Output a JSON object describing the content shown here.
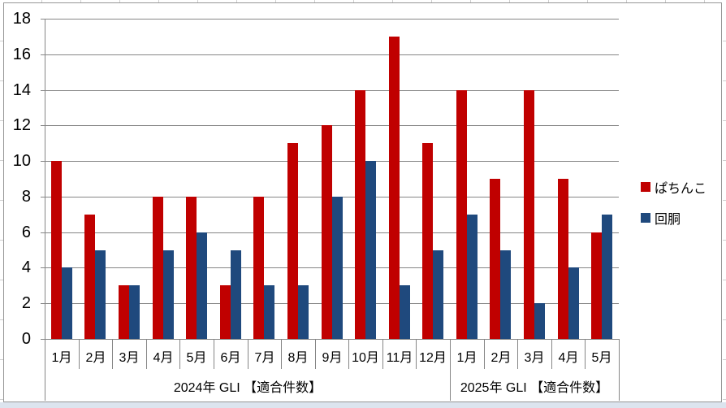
{
  "chart_data": {
    "type": "bar",
    "title": "",
    "xlabel": "",
    "ylabel": "",
    "categories": [
      "1月",
      "2月",
      "3月",
      "4月",
      "5月",
      "6月",
      "7月",
      "8月",
      "9月",
      "10月",
      "11月",
      "12月",
      "1月",
      "2月",
      "3月",
      "4月",
      "5月"
    ],
    "category_groups": [
      {
        "label": "2024年 GLI 【適合件数】",
        "count": 12
      },
      {
        "label": "2025年 GLI 【適合件数】",
        "count": 5
      }
    ],
    "series": [
      {
        "id": "pachinko",
        "name": "ぱちんこ",
        "color": "#c00000",
        "values": [
          10,
          7,
          3,
          8,
          8,
          3,
          8,
          11,
          12,
          14,
          17,
          11,
          14,
          9,
          14,
          9,
          6
        ]
      },
      {
        "id": "kaidou",
        "name": "回胴",
        "color": "#1f497d",
        "values": [
          4,
          5,
          3,
          5,
          6,
          5,
          3,
          3,
          8,
          10,
          3,
          5,
          7,
          5,
          2,
          4,
          7
        ]
      }
    ],
    "ylim": [
      0,
      18
    ],
    "yticks": [
      0,
      2,
      4,
      6,
      8,
      10,
      12,
      14,
      16,
      18
    ],
    "grid": true,
    "legend_position": "right",
    "colors": {
      "grid": "#868686",
      "axis": "#868686",
      "frame": "#969696",
      "bottom_strip": "#dce4ee"
    }
  }
}
